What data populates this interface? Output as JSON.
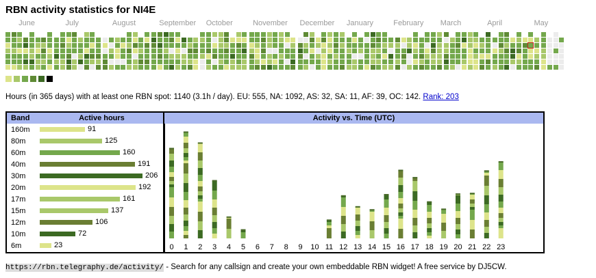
{
  "title": "RBN activity statistics for NI4E",
  "months": [
    "June",
    "July",
    "August",
    "September",
    "October",
    "November",
    "December",
    "January",
    "February",
    "March",
    "April",
    "May"
  ],
  "summary": {
    "text": "Hours (in 365 days) with at least one RBN spot: 1140 (3.1h / day). EU: 555, NA: 1092, AS: 32, SA: 11, AF: 39, OC: 142.",
    "rank_link": "Rank: 203"
  },
  "colors": {
    "level_0": "#ececec",
    "level_1": "#dde48a",
    "level_2": "#a9c86a",
    "level_3": "#74a84c",
    "level_4": "#5f8a35",
    "level_5": "#3c6a23",
    "level_6": "#000000",
    "highlight_border": "#cc2222",
    "header_bg": "#aab8f0"
  },
  "legend_levels": [
    1,
    2,
    3,
    4,
    5,
    6
  ],
  "bands_table": {
    "header_band": "Band",
    "header_hours": "Active hours",
    "rows": [
      {
        "band": "160m",
        "hours": 91,
        "color": "#dde48a"
      },
      {
        "band": "80m",
        "hours": 125,
        "color": "#a9c86a"
      },
      {
        "band": "60m",
        "hours": 160,
        "color": "#74a84c"
      },
      {
        "band": "40m",
        "hours": 191,
        "color": "#6a7e33"
      },
      {
        "band": "30m",
        "hours": 206,
        "color": "#3c6a23"
      },
      {
        "band": "20m",
        "hours": 192,
        "color": "#dde48a"
      },
      {
        "band": "17m",
        "hours": 161,
        "color": "#a9c86a"
      },
      {
        "band": "15m",
        "hours": 137,
        "color": "#a9c86a"
      },
      {
        "band": "12m",
        "hours": 106,
        "color": "#6a7e33"
      },
      {
        "band": "10m",
        "hours": 72,
        "color": "#3c6a23"
      },
      {
        "band": "6m",
        "hours": 23,
        "color": "#dde48a"
      }
    ]
  },
  "chart_data": {
    "type": "bar",
    "title": "Activity vs. Time (UTC)",
    "stacked": true,
    "categories": [
      "0",
      "1",
      "2",
      "3",
      "4",
      "5",
      "6",
      "7",
      "8",
      "9",
      "10",
      "11",
      "12",
      "13",
      "14",
      "15",
      "16",
      "17",
      "18",
      "19",
      "20",
      "21",
      "22",
      "23"
    ],
    "values": [
      148,
      175,
      157,
      95,
      35,
      14,
      0,
      0,
      0,
      0,
      0,
      30,
      70,
      52,
      47,
      72,
      112,
      100,
      60,
      48,
      73,
      74,
      111,
      126
    ],
    "band_colors": [
      "#dde48a",
      "#a9c86a",
      "#74a84c",
      "#6a7e33",
      "#3c6a23"
    ],
    "ylim": [
      0,
      180
    ]
  },
  "footer": {
    "url": "https://rbn.telegraphy.de/activity/",
    "text": " - Search for any callsign and create your own embeddable RBN widget! A free service by DJ5CW."
  }
}
